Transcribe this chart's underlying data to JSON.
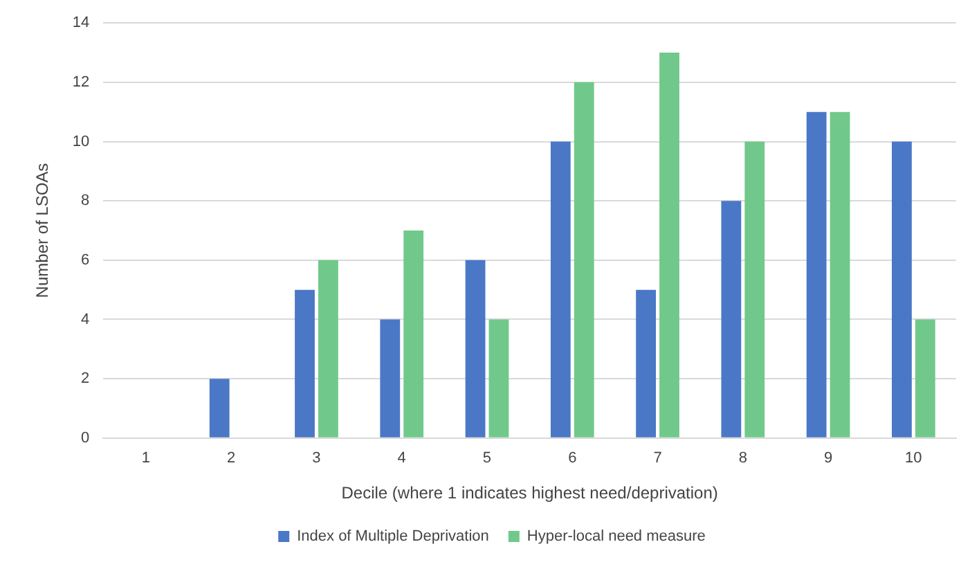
{
  "chart_data": {
    "type": "bar",
    "xlabel": "Decile (where 1 indicates highest need/deprivation)",
    "ylabel": "Number of LSOAs",
    "categories": [
      "1",
      "2",
      "3",
      "4",
      "5",
      "6",
      "7",
      "8",
      "9",
      "10"
    ],
    "series": [
      {
        "name": "Index of Multiple Deprivation",
        "color": "#4a78c6",
        "values": [
          0,
          2,
          5,
          4,
          6,
          10,
          5,
          8,
          11,
          10
        ]
      },
      {
        "name": "Hyper-local need measure",
        "color": "#70c98a",
        "values": [
          0,
          0,
          6,
          7,
          4,
          12,
          13,
          10,
          11,
          4
        ]
      }
    ],
    "ylim": [
      0,
      14
    ],
    "yticks": [
      0,
      2,
      4,
      6,
      8,
      10,
      12,
      14
    ],
    "grid": "y",
    "legend": "bottom"
  }
}
